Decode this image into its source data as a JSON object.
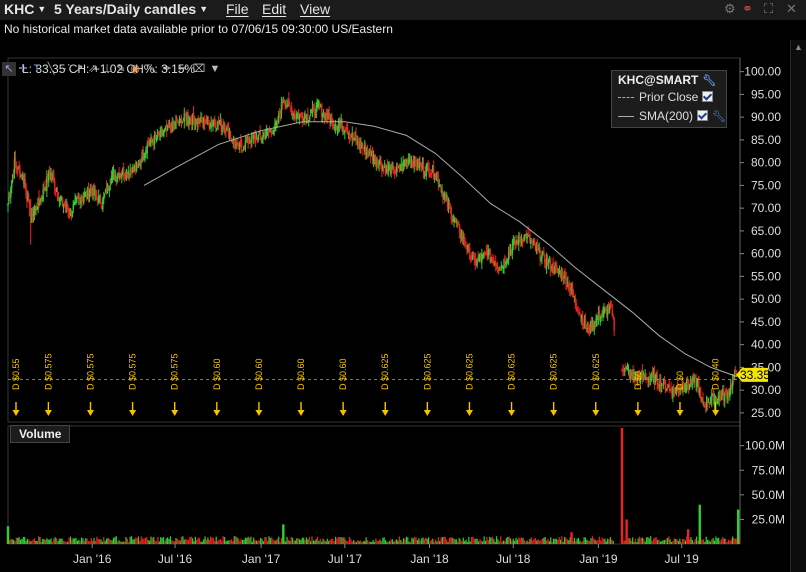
{
  "header": {
    "symbol": "KHC",
    "period": "5 Years/Daily candles",
    "menus": [
      "File",
      "Edit",
      "View"
    ]
  },
  "notice": "No historical market data available prior to 07/06/15 09:30:00 US/Eastern",
  "readout": "L: 33.35 CH: +1.02 CH%: 3.15%",
  "legend": {
    "title": "KHC@SMART",
    "prior_close": "Prior Close",
    "sma": "SMA(200)"
  },
  "volume_label": "Volume",
  "colors": {
    "up": "#33cc33",
    "down": "#ee2222",
    "sma": "#aaaaaa",
    "flag": "#f5c400",
    "price_tag": "#f3e500"
  },
  "chart_data": {
    "type": "candlestick",
    "last_price_tag": "33.35",
    "last_price": 33.35,
    "price_axis": {
      "ticks": [
        "100.00",
        "95.00",
        "90.00",
        "85.00",
        "80.00",
        "75.00",
        "70.00",
        "65.00",
        "60.00",
        "55.00",
        "50.00",
        "45.00",
        "40.00",
        "35.00",
        "30.00",
        "25.00"
      ],
      "range": [
        23,
        103
      ]
    },
    "volume_axis": {
      "ticks": [
        "100.0M",
        "75.0M",
        "50.0M",
        "25.0M"
      ],
      "range": [
        0,
        120
      ]
    },
    "x_axis": {
      "ticks": [
        "Jan '16",
        "Jul '16",
        "Jan '17",
        "Jul '17",
        "Jan '18",
        "Jul '18",
        "Jan '19",
        "Jul '19"
      ]
    },
    "close_path": [
      [
        "2015-07-06",
        71
      ],
      [
        "2015-07-20",
        80
      ],
      [
        "2015-08-10",
        76
      ],
      [
        "2015-08-24",
        68
      ],
      [
        "2015-09-14",
        72
      ],
      [
        "2015-10-05",
        78
      ],
      [
        "2015-10-26",
        72
      ],
      [
        "2015-11-16",
        69
      ],
      [
        "2015-12-07",
        72
      ],
      [
        "2016-01-04",
        74
      ],
      [
        "2016-01-25",
        71
      ],
      [
        "2016-02-15",
        77
      ],
      [
        "2016-03-14",
        78
      ],
      [
        "2016-04-11",
        79
      ],
      [
        "2016-05-02",
        84
      ],
      [
        "2016-05-30",
        86
      ],
      [
        "2016-06-27",
        88
      ],
      [
        "2016-07-25",
        90
      ],
      [
        "2016-08-22",
        89
      ],
      [
        "2016-09-19",
        89
      ],
      [
        "2016-10-17",
        88
      ],
      [
        "2016-11-14",
        83
      ],
      [
        "2016-12-12",
        85
      ],
      [
        "2017-01-09",
        86
      ],
      [
        "2017-02-06",
        88
      ],
      [
        "2017-02-20",
        94
      ],
      [
        "2017-03-13",
        91
      ],
      [
        "2017-04-10",
        90
      ],
      [
        "2017-05-08",
        92
      ],
      [
        "2017-06-05",
        89
      ],
      [
        "2017-07-03",
        88
      ],
      [
        "2017-08-01",
        84
      ],
      [
        "2017-08-28",
        82
      ],
      [
        "2017-09-25",
        79
      ],
      [
        "2017-10-23",
        78
      ],
      [
        "2017-11-20",
        81
      ],
      [
        "2017-12-18",
        79
      ],
      [
        "2018-01-15",
        78
      ],
      [
        "2018-02-12",
        70
      ],
      [
        "2018-03-12",
        64
      ],
      [
        "2018-04-09",
        58
      ],
      [
        "2018-05-07",
        60
      ],
      [
        "2018-06-04",
        57
      ],
      [
        "2018-07-02",
        62
      ],
      [
        "2018-07-30",
        64
      ],
      [
        "2018-08-27",
        60
      ],
      [
        "2018-09-24",
        57
      ],
      [
        "2018-10-22",
        55
      ],
      [
        "2018-11-19",
        48
      ],
      [
        "2018-12-10",
        43
      ],
      [
        "2018-12-31",
        46
      ],
      [
        "2019-01-14",
        47
      ],
      [
        "2019-01-28",
        48
      ],
      [
        "2019-02-22",
        35
      ],
      [
        "2019-03-18",
        33
      ],
      [
        "2019-04-15",
        33
      ],
      [
        "2019-05-13",
        32
      ],
      [
        "2019-06-10",
        30
      ],
      [
        "2019-07-08",
        31
      ],
      [
        "2019-08-05",
        32
      ],
      [
        "2019-08-12",
        27
      ],
      [
        "2019-09-02",
        28
      ],
      [
        "2019-10-07",
        29
      ],
      [
        "2019-10-28",
        33.35
      ]
    ],
    "sma200": [
      [
        "2016-04-25",
        75
      ],
      [
        "2016-07-04",
        79
      ],
      [
        "2016-10-03",
        84
      ],
      [
        "2017-01-02",
        87
      ],
      [
        "2017-04-03",
        89
      ],
      [
        "2017-07-03",
        89
      ],
      [
        "2017-09-04",
        88
      ],
      [
        "2017-11-13",
        86
      ],
      [
        "2018-01-15",
        82
      ],
      [
        "2018-03-12",
        77
      ],
      [
        "2018-05-14",
        71
      ],
      [
        "2018-07-16",
        67
      ],
      [
        "2018-09-17",
        62
      ],
      [
        "2018-11-12",
        57
      ],
      [
        "2019-01-14",
        52
      ],
      [
        "2019-03-18",
        47
      ],
      [
        "2019-05-13",
        42
      ],
      [
        "2019-07-08",
        38
      ],
      [
        "2019-09-02",
        35
      ],
      [
        "2019-10-28",
        33
      ]
    ],
    "dividends": [
      {
        "date": "2015-07-06",
        "label": "D $0.55"
      },
      {
        "date": "2015-09-14",
        "label": "D $0.575"
      },
      {
        "date": "2015-12-14",
        "label": "D $0.575"
      },
      {
        "date": "2016-03-14",
        "label": "D $0.575"
      },
      {
        "date": "2016-06-13",
        "label": "D $0.575"
      },
      {
        "date": "2016-09-12",
        "label": "D $0.60"
      },
      {
        "date": "2016-12-12",
        "label": "D $0.60"
      },
      {
        "date": "2017-03-13",
        "label": "D $0.60"
      },
      {
        "date": "2017-06-12",
        "label": "D $0.60"
      },
      {
        "date": "2017-09-11",
        "label": "D $0.625"
      },
      {
        "date": "2017-12-11",
        "label": "D $0.625"
      },
      {
        "date": "2018-03-12",
        "label": "D $0.625"
      },
      {
        "date": "2018-06-11",
        "label": "D $0.625"
      },
      {
        "date": "2018-09-10",
        "label": "D $0.625"
      },
      {
        "date": "2018-12-10",
        "label": "D $0.625"
      },
      {
        "date": "2019-03-11",
        "label": "D $0"
      },
      {
        "date": "2019-06-10",
        "label": "D $0"
      },
      {
        "date": "2019-08-26",
        "label": "D $0.40"
      }
    ],
    "volume_spikes": [
      {
        "date": "2017-02-20",
        "value": 20,
        "dir": "up"
      },
      {
        "date": "2019-02-22",
        "value": 118,
        "dir": "down"
      },
      {
        "date": "2019-03-04",
        "value": 25,
        "dir": "down"
      },
      {
        "date": "2018-11-05",
        "value": 12,
        "dir": "down"
      },
      {
        "date": "2019-08-09",
        "value": 40,
        "dir": "up"
      },
      {
        "date": "2019-07-15",
        "value": 15,
        "dir": "down"
      },
      {
        "date": "2019-10-31",
        "value": 35,
        "dir": "up"
      },
      {
        "date": "2015-07-06",
        "value": 18,
        "dir": "up"
      }
    ]
  }
}
